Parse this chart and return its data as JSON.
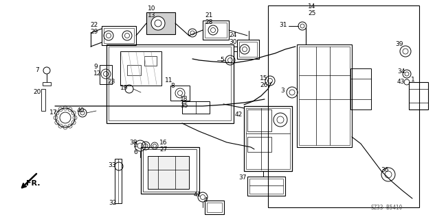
{
  "bg_color": "#ffffff",
  "fig_width": 6.33,
  "fig_height": 3.2,
  "dpi": 100,
  "watermark": "SZ33-B5410",
  "arrow_label": "FR.",
  "line_color": "#000000",
  "text_color": "#000000",
  "label_font_size": 6.5
}
